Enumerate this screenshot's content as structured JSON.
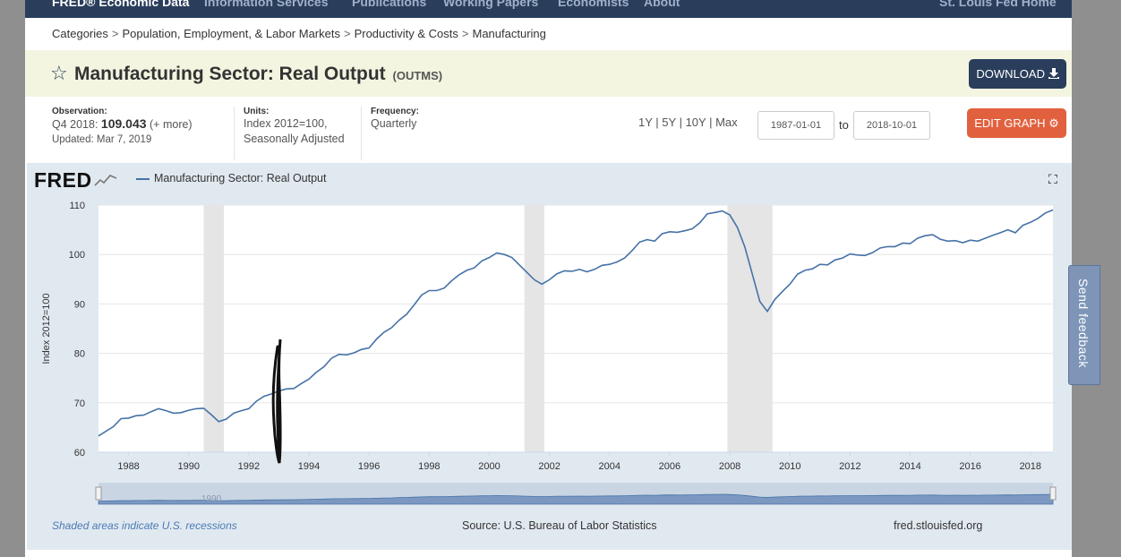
{
  "nav": {
    "brand": "FRED® Economic Data",
    "items": [
      "Information Services",
      "Publications",
      "Working Papers",
      "Economists",
      "About"
    ],
    "home": "St. Louis Fed Home"
  },
  "breadcrumb": [
    "Categories",
    "Population, Employment, & Labor Markets",
    "Productivity & Costs",
    "Manufacturing"
  ],
  "header": {
    "title": "Manufacturing Sector: Real Output",
    "series_id": "(OUTMS)",
    "download_label": "DOWNLOAD"
  },
  "meta": {
    "observation_label": "Observation:",
    "observation_period": "Q4 2018:",
    "observation_value": "109.043",
    "more": "(+ more)",
    "updated": "Updated: Mar 7, 2019",
    "units_label": "Units:",
    "units_line1": "Index 2012=100,",
    "units_line2": "Seasonally Adjusted",
    "frequency_label": "Frequency:",
    "frequency_value": "Quarterly"
  },
  "controls": {
    "ranges": [
      "1Y",
      "5Y",
      "10Y",
      "Max"
    ],
    "start_date": "1987-01-01",
    "to_label": "to",
    "end_date": "2018-10-01",
    "edit_label": "EDIT GRAPH"
  },
  "graph": {
    "logo": "FRED",
    "legend": "Manufacturing Sector: Real Output",
    "recession_note": "Shaded areas indicate U.S. recessions",
    "source": "Source: U.S. Bureau of Labor Statistics",
    "site": "fred.stlouisfed.org",
    "navigator_label": "1990"
  },
  "feedback_label": "Send feedback",
  "chart_data": {
    "type": "line",
    "title": "Manufacturing Sector: Real Output",
    "ylabel": "Index 2012=100",
    "xlabel": "",
    "xlim": [
      1987.0,
      2018.75
    ],
    "ylim": [
      60,
      110
    ],
    "yticks": [
      60,
      70,
      80,
      90,
      100,
      110
    ],
    "xticks": [
      "1988",
      "1990",
      "1992",
      "1994",
      "1996",
      "1998",
      "2000",
      "2002",
      "2004",
      "2006",
      "2008",
      "2010",
      "2012",
      "2014",
      "2016",
      "2018"
    ],
    "recessions": [
      [
        1990.5,
        1991.17
      ],
      [
        2001.17,
        2001.83
      ],
      [
        2007.92,
        2009.42
      ]
    ],
    "color": "#4572a7",
    "series": [
      {
        "name": "Manufacturing Sector: Real Output",
        "x": [
          1987.0,
          1987.5,
          1987.75,
          1988.0,
          1988.25,
          1988.5,
          1988.75,
          1989.0,
          1989.25,
          1989.5,
          1989.75,
          1990.0,
          1990.25,
          1990.5,
          1990.75,
          1991.0,
          1991.25,
          1991.5,
          1991.75,
          1992.0,
          1992.25,
          1992.5,
          1992.75,
          1993.0,
          1993.25,
          1993.5,
          1993.75,
          1994.0,
          1994.25,
          1994.5,
          1994.75,
          1995.0,
          1995.25,
          1995.5,
          1995.75,
          1996.0,
          1996.25,
          1996.5,
          1996.75,
          1997.0,
          1997.25,
          1997.5,
          1997.75,
          1998.0,
          1998.25,
          1998.5,
          1998.75,
          1999.0,
          1999.25,
          1999.5,
          1999.75,
          2000.0,
          2000.25,
          2000.5,
          2000.75,
          2001.0,
          2001.25,
          2001.5,
          2001.75,
          2002.0,
          2002.25,
          2002.5,
          2002.75,
          2003.0,
          2003.25,
          2003.5,
          2003.75,
          2004.0,
          2004.25,
          2004.5,
          2004.75,
          2005.0,
          2005.25,
          2005.5,
          2005.75,
          2006.0,
          2006.25,
          2006.5,
          2006.75,
          2007.0,
          2007.25,
          2007.5,
          2007.75,
          2008.0,
          2008.25,
          2008.5,
          2008.75,
          2009.0,
          2009.25,
          2009.5,
          2009.75,
          2010.0,
          2010.25,
          2010.5,
          2010.75,
          2011.0,
          2011.25,
          2011.5,
          2011.75,
          2012.0,
          2012.25,
          2012.5,
          2012.75,
          2013.0,
          2013.25,
          2013.5,
          2013.75,
          2014.0,
          2014.25,
          2014.5,
          2014.75,
          2015.0,
          2015.25,
          2015.5,
          2015.75,
          2016.0,
          2016.25,
          2016.5,
          2016.75,
          2017.0,
          2017.25,
          2017.5,
          2017.75,
          2018.0,
          2018.25,
          2018.5,
          2018.75
        ],
        "values": [
          63.3,
          65.2,
          66.8,
          66.9,
          67.4,
          67.5,
          68.2,
          68.8,
          68.4,
          67.9,
          68.0,
          68.5,
          68.8,
          68.9,
          67.6,
          66.2,
          66.7,
          67.9,
          68.4,
          68.8,
          70.3,
          71.3,
          71.8,
          72.4,
          72.8,
          72.9,
          73.9,
          74.8,
          76.2,
          77.3,
          79.0,
          79.8,
          79.7,
          80.1,
          80.8,
          81.1,
          82.9,
          84.3,
          85.2,
          86.7,
          87.9,
          89.8,
          91.8,
          92.7,
          92.7,
          93.2,
          94.7,
          95.9,
          96.8,
          97.3,
          98.7,
          99.4,
          100.3,
          100.0,
          99.4,
          97.9,
          96.4,
          94.9,
          94.0,
          94.9,
          96.1,
          96.7,
          96.6,
          97.0,
          96.5,
          97.0,
          97.8,
          98.0,
          98.5,
          99.3,
          100.8,
          102.5,
          103.0,
          102.7,
          104.2,
          104.6,
          104.5,
          104.8,
          105.2,
          106.4,
          108.2,
          108.5,
          108.8,
          108.0,
          105.5,
          101.5,
          96.0,
          90.5,
          88.5,
          90.9,
          92.5,
          94.0,
          96.0,
          96.8,
          97.1,
          98.0,
          97.9,
          98.9,
          99.3,
          100.1,
          99.9,
          99.8,
          100.4,
          101.3,
          101.6,
          101.6,
          102.3,
          102.2,
          103.3,
          103.8,
          104.0,
          103.1,
          102.7,
          102.8,
          102.4,
          102.9,
          102.7,
          103.3,
          103.9,
          104.4,
          105.0,
          104.4,
          105.9,
          106.5,
          107.3,
          108.4,
          109.0
        ]
      }
    ]
  }
}
